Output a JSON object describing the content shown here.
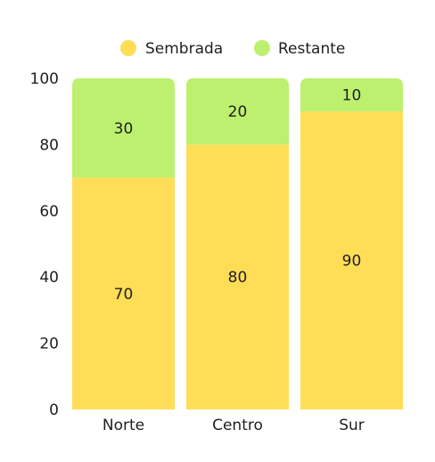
{
  "chart_data": {
    "type": "bar",
    "stacked": true,
    "categories": [
      "Norte",
      "Centro",
      "Sur"
    ],
    "series": [
      {
        "name": "Sembrada",
        "values": [
          70,
          80,
          90
        ],
        "color": "#ffdd57"
      },
      {
        "name": "Restante",
        "values": [
          30,
          20,
          10
        ],
        "color": "#bdf06e"
      }
    ],
    "y_ticks": [
      0,
      20,
      40,
      60,
      80,
      100
    ],
    "ylim": [
      0,
      100
    ],
    "title": "",
    "xlabel": "",
    "ylabel": "",
    "grid": false,
    "legend_position": "top-center"
  }
}
